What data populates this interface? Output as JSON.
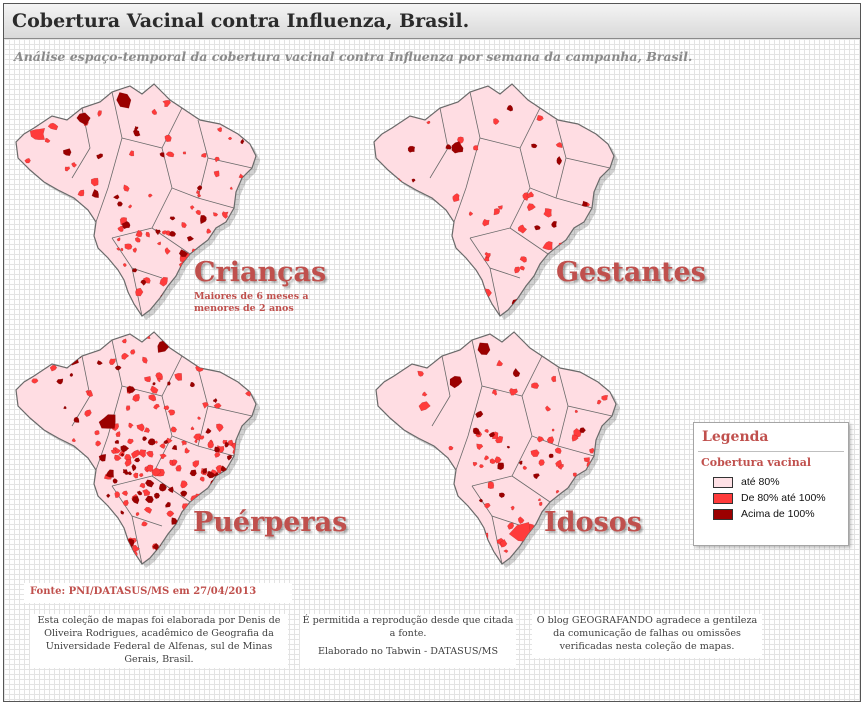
{
  "header": {
    "title": "Cobertura Vacinal contra Influenza, Brasil.",
    "subtitle": "Análise espaço-temporal da cobertura vacinal contra Influenza por semana da campanha, Brasil."
  },
  "maps": [
    {
      "id": "criancas",
      "label": "Crianças",
      "sublabel": "Maiores de 6 meses a menores de 2 anos"
    },
    {
      "id": "gestantes",
      "label": "Gestantes"
    },
    {
      "id": "puerperas",
      "label": "Puérperas"
    },
    {
      "id": "idosos",
      "label": "Idosos"
    }
  ],
  "legend": {
    "title": "Legenda",
    "subtitle": "Cobertura vacinal",
    "items": [
      {
        "label": "até 80%",
        "color": "#ffe1e6"
      },
      {
        "label": "De 80% até 100%",
        "color": "#ff3b3b"
      },
      {
        "label": "Acima de 100%",
        "color": "#9b0000"
      }
    ]
  },
  "colors": {
    "base_fill": "#ffdde3",
    "border": "#6a6a6a",
    "medium": "#ff3b3b",
    "high": "#9b0000",
    "label": "#c0504d"
  },
  "source": "Fonte: PNI/DATASUS/MS em 27/04/2013",
  "footer": {
    "author": "Esta coleção de mapas foi elaborada por Denis de Oliveira Rodrigues, acadêmico de Geografia da Universidade Federal de Alfenas, sul de Minas Gerais, Brasil.",
    "reproduction": "É permitida a reprodução desde que citada a fonte.",
    "tool": "Elaborado no Tabwin - DATASUS/MS",
    "thanks": "O blog GEOGRAFANDO agradece a gentileza da comunicação de falhas ou omissões verificadas nesta coleção de mapas."
  }
}
